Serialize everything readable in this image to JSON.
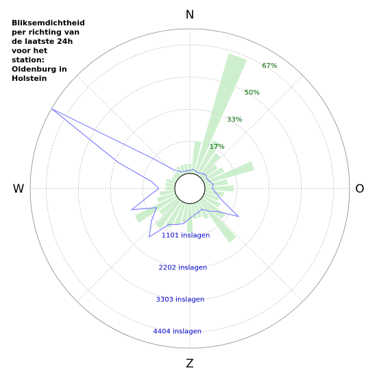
{
  "chart_data": {
    "type": "polar",
    "title_lines": [
      "Bliksemdichtheid",
      "per richting van",
      "de laatste 24h",
      "voor het",
      "station:",
      "Oldenburg in",
      "Holstein"
    ],
    "directions": {
      "N": "N",
      "O": "O",
      "Z": "Z",
      "W": "W"
    },
    "x": [
      0,
      10,
      20,
      30,
      40,
      50,
      60,
      70,
      80,
      90,
      100,
      110,
      120,
      130,
      140,
      150,
      160,
      170,
      180,
      190,
      200,
      210,
      220,
      230,
      240,
      250,
      260,
      270,
      280,
      290,
      300,
      310,
      320,
      330,
      340,
      350
    ],
    "series": [
      {
        "name": "percentage",
        "color": "#c6ecc6",
        "axis": "r",
        "values": [
          5,
          17,
          65,
          20,
          15,
          10,
          12,
          27,
          12,
          15,
          10,
          8,
          10,
          15,
          27,
          10,
          8,
          8,
          15,
          10,
          12,
          15,
          18,
          12,
          24,
          10,
          8,
          5,
          5,
          5,
          3,
          3,
          3,
          5,
          5,
          5
        ]
      },
      {
        "name": "inslagen",
        "color": "#8080ff",
        "axis": "r2",
        "values": [
          100,
          150,
          100,
          100,
          150,
          200,
          150,
          200,
          300,
          250,
          400,
          650,
          1400,
          700,
          500,
          300,
          350,
          400,
          500,
          700,
          800,
          900,
          1650,
          1200,
          800,
          1600,
          900,
          550,
          800,
          2100,
          4950,
          1000,
          300,
          150,
          100,
          100
        ]
      }
    ],
    "rlim": [
      0,
      75
    ],
    "rticks": [
      {
        "value": 16.67,
        "label": "17%"
      },
      {
        "value": 33.33,
        "label": "33%"
      },
      {
        "value": 50,
        "label": "50%"
      },
      {
        "value": 66.67,
        "label": "67%"
      }
    ],
    "r2lim": [
      0,
      4955
    ],
    "r2ticks": [
      {
        "value": 1101,
        "label": "1101 inslagen"
      },
      {
        "value": 2202,
        "label": "2202 inslagen"
      },
      {
        "value": 3303,
        "label": "3303 inslagen"
      },
      {
        "value": 4404,
        "label": "4404 inslagen"
      }
    ],
    "grid": true
  }
}
